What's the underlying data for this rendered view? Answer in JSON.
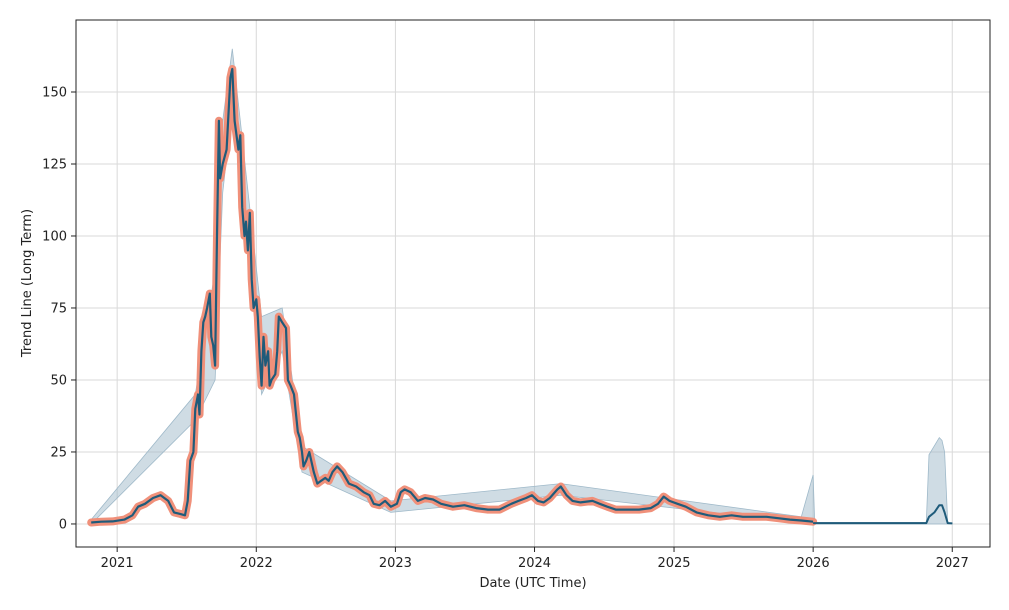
{
  "chart_data": {
    "type": "line",
    "title": "",
    "xlabel": "Date (UTC Time)",
    "ylabel": "Trend Line (Long Term)",
    "x_ticks": [
      "2021",
      "2022",
      "2023",
      "2024",
      "2025",
      "2026",
      "2027"
    ],
    "y_ticks": [
      0,
      25,
      50,
      75,
      100,
      125,
      150
    ],
    "xlim": [
      "2020-09-15",
      "2027-04-10"
    ],
    "ylim": [
      -8,
      175
    ],
    "grid": true,
    "legend": "none",
    "colors": {
      "history_outline": "#f0907a",
      "trend_line": "#1f5b7a",
      "band": "#9fb9c9",
      "grid": "#d9d9d9"
    },
    "series": [
      {
        "kind": "history",
        "points": [
          [
            "2020-10-25",
            0.5
          ],
          [
            "2020-11-20",
            0.8
          ],
          [
            "2020-12-20",
            0.9
          ],
          [
            "2021-01-20",
            1.5
          ],
          [
            "2021-02-10",
            3
          ],
          [
            "2021-02-25",
            6
          ],
          [
            "2021-03-15",
            7
          ],
          [
            "2021-04-05",
            9
          ],
          [
            "2021-04-25",
            10
          ],
          [
            "2021-05-15",
            8
          ],
          [
            "2021-05-30",
            4
          ],
          [
            "2021-06-15",
            3.5
          ],
          [
            "2021-06-28",
            3
          ],
          [
            "2021-07-05",
            8
          ],
          [
            "2021-07-12",
            22
          ],
          [
            "2021-07-20",
            25
          ],
          [
            "2021-07-25",
            40
          ],
          [
            "2021-08-01",
            45
          ],
          [
            "2021-08-05",
            38
          ],
          [
            "2021-08-10",
            60
          ],
          [
            "2021-08-15",
            70
          ],
          [
            "2021-08-20",
            72
          ],
          [
            "2021-08-25",
            75
          ],
          [
            "2021-09-01",
            80
          ],
          [
            "2021-09-05",
            65
          ],
          [
            "2021-09-10",
            62
          ],
          [
            "2021-09-15",
            55
          ],
          [
            "2021-09-20",
            100
          ],
          [
            "2021-09-25",
            140
          ],
          [
            "2021-09-28",
            120
          ],
          [
            "2021-10-05",
            125
          ],
          [
            "2021-10-15",
            130
          ],
          [
            "2021-10-25",
            155
          ],
          [
            "2021-10-30",
            158
          ],
          [
            "2021-11-05",
            140
          ],
          [
            "2021-11-10",
            135
          ],
          [
            "2021-11-15",
            130
          ],
          [
            "2021-11-20",
            135
          ],
          [
            "2021-11-25",
            110
          ],
          [
            "2021-12-01",
            100
          ],
          [
            "2021-12-05",
            105
          ],
          [
            "2021-12-10",
            95
          ],
          [
            "2021-12-15",
            108
          ],
          [
            "2021-12-20",
            85
          ],
          [
            "2021-12-25",
            75
          ],
          [
            "2022-01-01",
            78
          ],
          [
            "2022-01-05",
            72
          ],
          [
            "2022-01-10",
            58
          ],
          [
            "2022-01-15",
            48
          ],
          [
            "2022-01-20",
            65
          ],
          [
            "2022-01-25",
            55
          ],
          [
            "2022-02-01",
            60
          ],
          [
            "2022-02-05",
            48
          ],
          [
            "2022-02-10",
            50
          ],
          [
            "2022-02-20",
            52
          ],
          [
            "2022-02-25",
            60
          ],
          [
            "2022-03-01",
            72
          ],
          [
            "2022-03-10",
            70
          ],
          [
            "2022-03-20",
            68
          ],
          [
            "2022-03-25",
            50
          ],
          [
            "2022-04-01",
            48
          ],
          [
            "2022-04-10",
            45
          ],
          [
            "2022-04-20",
            32
          ],
          [
            "2022-04-25",
            30
          ],
          [
            "2022-05-01",
            25
          ],
          [
            "2022-05-05",
            20
          ],
          [
            "2022-05-12",
            22
          ],
          [
            "2022-05-20",
            25
          ],
          [
            "2022-06-01",
            18
          ],
          [
            "2022-06-10",
            14
          ],
          [
            "2022-06-20",
            15
          ],
          [
            "2022-07-01",
            16
          ],
          [
            "2022-07-10",
            15
          ],
          [
            "2022-07-20",
            18
          ],
          [
            "2022-08-01",
            20
          ],
          [
            "2022-08-15",
            18
          ],
          [
            "2022-09-01",
            14
          ],
          [
            "2022-09-20",
            13
          ],
          [
            "2022-10-10",
            11
          ],
          [
            "2022-10-25",
            10
          ],
          [
            "2022-11-05",
            7
          ],
          [
            "2022-11-20",
            6.5
          ],
          [
            "2022-12-05",
            8
          ],
          [
            "2022-12-20",
            6
          ],
          [
            "2023-01-05",
            7
          ],
          [
            "2023-01-15",
            11
          ],
          [
            "2023-01-25",
            12
          ],
          [
            "2023-02-10",
            11
          ],
          [
            "2023-03-01",
            8
          ],
          [
            "2023-03-20",
            9
          ],
          [
            "2023-04-10",
            8.5
          ],
          [
            "2023-05-01",
            7
          ],
          [
            "2023-06-01",
            6
          ],
          [
            "2023-07-01",
            6.5
          ],
          [
            "2023-08-01",
            5.5
          ],
          [
            "2023-09-01",
            5
          ],
          [
            "2023-10-01",
            5
          ],
          [
            "2023-11-01",
            7
          ],
          [
            "2023-11-20",
            8
          ],
          [
            "2023-12-10",
            9
          ],
          [
            "2023-12-25",
            10
          ],
          [
            "2024-01-10",
            8
          ],
          [
            "2024-01-25",
            7.5
          ],
          [
            "2024-02-10",
            9
          ],
          [
            "2024-03-01",
            12
          ],
          [
            "2024-03-10",
            13
          ],
          [
            "2024-03-25",
            10
          ],
          [
            "2024-04-10",
            8
          ],
          [
            "2024-05-01",
            7.5
          ],
          [
            "2024-06-01",
            8
          ],
          [
            "2024-06-20",
            7
          ],
          [
            "2024-07-10",
            6
          ],
          [
            "2024-08-01",
            5
          ],
          [
            "2024-09-01",
            5
          ],
          [
            "2024-10-01",
            5
          ],
          [
            "2024-11-01",
            5.5
          ],
          [
            "2024-11-20",
            7
          ],
          [
            "2024-12-05",
            9.5
          ],
          [
            "2024-12-20",
            8
          ],
          [
            "2025-01-10",
            7
          ],
          [
            "2025-02-01",
            6
          ],
          [
            "2025-03-01",
            4
          ],
          [
            "2025-04-01",
            3
          ],
          [
            "2025-05-01",
            2.5
          ],
          [
            "2025-06-01",
            3
          ],
          [
            "2025-07-01",
            2.5
          ],
          [
            "2025-08-01",
            2.5
          ],
          [
            "2025-09-01",
            2.5
          ],
          [
            "2025-10-01",
            2
          ],
          [
            "2025-11-01",
            1.5
          ],
          [
            "2025-12-01",
            1.2
          ],
          [
            "2026-01-01",
            0.8
          ]
        ]
      },
      {
        "kind": "trend",
        "points": [
          [
            "2026-01-01",
            0.3
          ],
          [
            "2026-10-25",
            0.3
          ],
          [
            "2026-11-01",
            2.5
          ],
          [
            "2026-11-15",
            4
          ],
          [
            "2026-11-28",
            6.5
          ],
          [
            "2026-12-05",
            6.5
          ],
          [
            "2026-12-12",
            4
          ],
          [
            "2026-12-20",
            0.3
          ],
          [
            "2027-01-01",
            0.2
          ]
        ]
      }
    ],
    "band": {
      "upper": [
        [
          "2020-10-25",
          1.5
        ],
        [
          "2021-07-25",
          45
        ],
        [
          "2021-09-15",
          88
        ],
        [
          "2021-10-05",
          140
        ],
        [
          "2021-10-30",
          165
        ],
        [
          "2021-11-20",
          140
        ],
        [
          "2022-01-15",
          72
        ],
        [
          "2022-03-10",
          75
        ],
        [
          "2022-05-01",
          27
        ],
        [
          "2022-12-20",
          8
        ],
        [
          "2024-03-10",
          14
        ],
        [
          "2025-12-01",
          2.5
        ],
        [
          "2026-01-01",
          17
        ],
        [
          "2026-01-05",
          0.5
        ],
        [
          "2026-10-25",
          0.5
        ],
        [
          "2026-11-01",
          24
        ],
        [
          "2026-11-28",
          30
        ],
        [
          "2026-12-05",
          29
        ],
        [
          "2026-12-12",
          25
        ],
        [
          "2026-12-20",
          0.5
        ],
        [
          "2027-01-01",
          0.3
        ]
      ],
      "lower": [
        [
          "2027-01-01",
          0
        ],
        [
          "2026-12-20",
          0
        ],
        [
          "2026-10-25",
          0
        ],
        [
          "2026-01-05",
          0
        ],
        [
          "2026-01-01",
          0
        ],
        [
          "2025-12-01",
          0.5
        ],
        [
          "2024-03-10",
          10
        ],
        [
          "2022-12-20",
          4
        ],
        [
          "2022-05-01",
          18
        ],
        [
          "2022-03-10",
          60
        ],
        [
          "2022-01-15",
          45
        ],
        [
          "2021-11-20",
          125
        ],
        [
          "2021-10-30",
          145
        ],
        [
          "2021-10-05",
          115
        ],
        [
          "2021-09-15",
          50
        ],
        [
          "2021-07-25",
          36
        ],
        [
          "2020-10-25",
          0
        ]
      ]
    }
  }
}
